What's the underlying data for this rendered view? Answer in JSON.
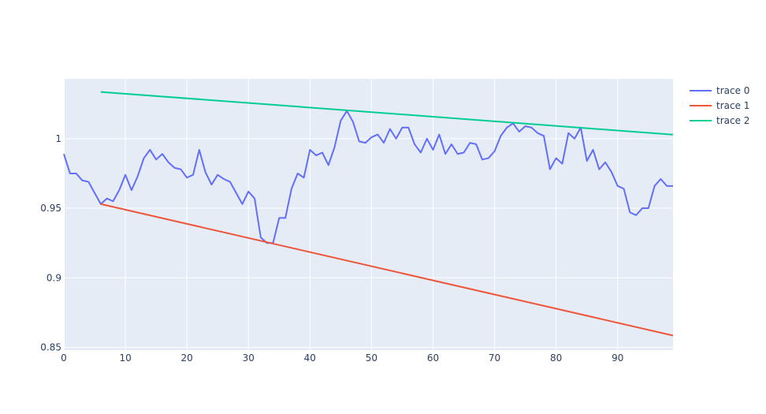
{
  "chart_data": {
    "type": "line",
    "xlim": [
      0,
      99
    ],
    "ylim": [
      0.848,
      1.043
    ],
    "x_ticks": [
      0,
      10,
      20,
      30,
      40,
      50,
      60,
      70,
      80,
      90
    ],
    "y_ticks": [
      0.85,
      0.9,
      0.95,
      1
    ],
    "y_tick_labels": [
      "0.85",
      "0.9",
      "0.95",
      "1"
    ],
    "grid": true,
    "legend_position": "top-right",
    "background_color": "#e5ecf6",
    "grid_color": "#ffffff",
    "series": [
      {
        "name": "trace 0",
        "color": "#636efa",
        "x": [
          0,
          1,
          2,
          3,
          4,
          5,
          6,
          7,
          8,
          9,
          10,
          11,
          12,
          13,
          14,
          15,
          16,
          17,
          18,
          19,
          20,
          21,
          22,
          23,
          24,
          25,
          26,
          27,
          28,
          29,
          30,
          31,
          32,
          33,
          34,
          35,
          36,
          37,
          38,
          39,
          40,
          41,
          42,
          43,
          44,
          45,
          46,
          47,
          48,
          49,
          50,
          51,
          52,
          53,
          54,
          55,
          56,
          57,
          58,
          59,
          60,
          61,
          62,
          63,
          64,
          65,
          66,
          67,
          68,
          69,
          70,
          71,
          72,
          73,
          74,
          75,
          76,
          77,
          78,
          79,
          80,
          81,
          82,
          83,
          84,
          85,
          86,
          87,
          88,
          89,
          90,
          91,
          92,
          93,
          94,
          95,
          96,
          97,
          98,
          99
        ],
        "y": [
          0.989,
          0.975,
          0.975,
          0.97,
          0.969,
          0.961,
          0.953,
          0.957,
          0.955,
          0.963,
          0.974,
          0.963,
          0.973,
          0.986,
          0.992,
          0.985,
          0.989,
          0.983,
          0.979,
          0.978,
          0.972,
          0.974,
          0.992,
          0.976,
          0.967,
          0.974,
          0.971,
          0.969,
          0.961,
          0.953,
          0.962,
          0.957,
          0.929,
          0.925,
          0.925,
          0.943,
          0.943,
          0.964,
          0.975,
          0.972,
          0.992,
          0.988,
          0.99,
          0.981,
          0.994,
          1.013,
          1.02,
          1.012,
          0.998,
          0.997,
          1.001,
          1.003,
          0.997,
          1.007,
          1.0,
          1.008,
          1.008,
          0.996,
          0.99,
          1.0,
          0.992,
          1.003,
          0.989,
          0.996,
          0.989,
          0.99,
          0.997,
          0.996,
          0.985,
          0.986,
          0.991,
          1.002,
          1.008,
          1.011,
          1.005,
          1.009,
          1.008,
          1.004,
          1.002,
          0.978,
          0.986,
          0.982,
          1.004,
          1.0,
          1.008,
          0.984,
          0.992,
          0.978,
          0.983,
          0.976,
          0.966,
          0.964,
          0.947,
          0.945,
          0.95,
          0.95,
          0.966,
          0.971,
          0.966,
          0.966
        ]
      },
      {
        "name": "trace 1",
        "color": "#ef553b",
        "x": [
          6,
          99
        ],
        "y": [
          0.953,
          0.8585
        ]
      },
      {
        "name": "trace 2",
        "color": "#00cc96",
        "x": [
          6,
          99
        ],
        "y": [
          1.0336,
          1.0029
        ]
      }
    ]
  }
}
